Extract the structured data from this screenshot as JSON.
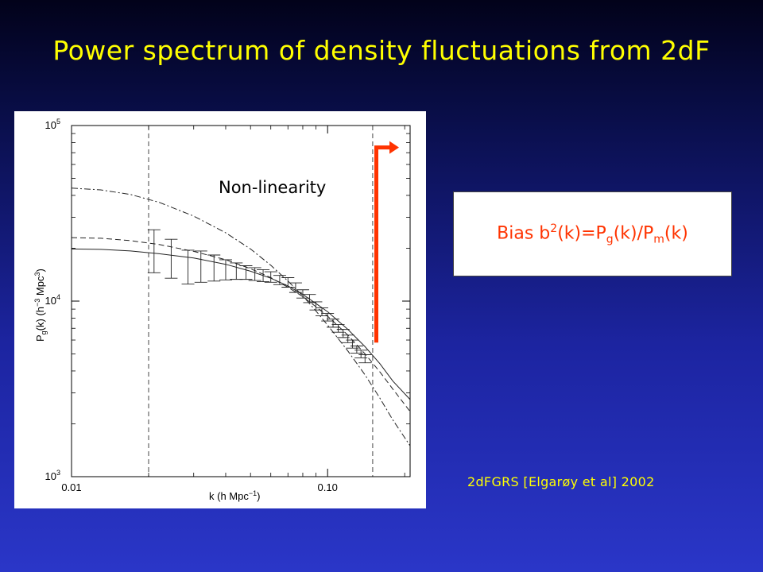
{
  "slide": {
    "title": "Power spectrum of density fluctuations from 2dF",
    "annotation": "Non-linearity",
    "bias_box": {
      "prefix": "Bias b",
      "sup": "2",
      "mid1": "(k)=P",
      "sub1": "g",
      "mid2": "(k)/P",
      "sub2": "m",
      "suffix": "(k)"
    },
    "citation": "2dFGRS [Elgarøy et al] 2002"
  },
  "colors": {
    "title": "#ffff00",
    "arrow": "#ff3300",
    "bias_text": "#ff3300",
    "citation": "#ffff00"
  },
  "chart_data": {
    "type": "line",
    "xscale": "log",
    "yscale": "log",
    "xlim": [
      0.01,
      0.21
    ],
    "ylim": [
      1000,
      100000
    ],
    "x_ticks": [
      {
        "value": 0.01,
        "label": "0.01"
      },
      {
        "value": 0.1,
        "label": "0.10"
      }
    ],
    "y_ticks": [
      {
        "value": 1000,
        "base": "10",
        "exp": "3"
      },
      {
        "value": 10000,
        "base": "10",
        "exp": "4"
      },
      {
        "value": 100000,
        "base": "10",
        "exp": "5"
      }
    ],
    "xlabel": {
      "main": "k (h Mpc",
      "sup": "−1",
      "end": ")"
    },
    "ylabel": {
      "p": "P",
      "sub": "g",
      "main": "(k) (h",
      "sup1": "−3",
      "mid": " Mpc",
      "sup2": "3",
      "end": ")"
    },
    "vlines": [
      0.02,
      0.15
    ],
    "series": [
      {
        "style": "solid",
        "points": [
          [
            0.01,
            19800
          ],
          [
            0.013,
            19700
          ],
          [
            0.017,
            19300
          ],
          [
            0.022,
            18600
          ],
          [
            0.03,
            17600
          ],
          [
            0.04,
            16200
          ],
          [
            0.05,
            14800
          ],
          [
            0.06,
            13500
          ],
          [
            0.07,
            12200
          ],
          [
            0.08,
            10900
          ],
          [
            0.09,
            9700
          ],
          [
            0.1,
            8700
          ],
          [
            0.12,
            6900
          ],
          [
            0.14,
            5500
          ],
          [
            0.16,
            4400
          ],
          [
            0.18,
            3500
          ],
          [
            0.21,
            2750
          ]
        ]
      },
      {
        "style": "dashed",
        "points": [
          [
            0.01,
            23000
          ],
          [
            0.013,
            22800
          ],
          [
            0.017,
            22100
          ],
          [
            0.022,
            21000
          ],
          [
            0.03,
            19200
          ],
          [
            0.04,
            17200
          ],
          [
            0.05,
            15300
          ],
          [
            0.06,
            13600
          ],
          [
            0.07,
            12000
          ],
          [
            0.08,
            10600
          ],
          [
            0.09,
            9300
          ],
          [
            0.1,
            8200
          ],
          [
            0.12,
            6400
          ],
          [
            0.14,
            5000
          ],
          [
            0.16,
            3950
          ],
          [
            0.18,
            3150
          ],
          [
            0.21,
            2350
          ]
        ]
      },
      {
        "style": "dashdot",
        "points": [
          [
            0.01,
            44000
          ],
          [
            0.013,
            43000
          ],
          [
            0.017,
            40500
          ],
          [
            0.022,
            36500
          ],
          [
            0.03,
            30500
          ],
          [
            0.04,
            24500
          ],
          [
            0.05,
            19800
          ],
          [
            0.06,
            16000
          ],
          [
            0.07,
            13000
          ],
          [
            0.08,
            10700
          ],
          [
            0.09,
            8800
          ],
          [
            0.1,
            7300
          ],
          [
            0.12,
            5200
          ],
          [
            0.14,
            3800
          ],
          [
            0.16,
            2800
          ],
          [
            0.18,
            2100
          ],
          [
            0.21,
            1500
          ]
        ]
      }
    ],
    "errorbars": [
      {
        "k": 0.021,
        "y": 18500,
        "lo": 14500,
        "hi": 25500
      },
      {
        "k": 0.0245,
        "y": 17500,
        "lo": 13500,
        "hi": 22500
      },
      {
        "k": 0.0285,
        "y": 17000,
        "lo": 12500,
        "hi": 19500
      },
      {
        "k": 0.032,
        "y": 16200,
        "lo": 12800,
        "hi": 19300
      },
      {
        "k": 0.036,
        "y": 15800,
        "lo": 13000,
        "hi": 18300
      },
      {
        "k": 0.04,
        "y": 15200,
        "lo": 13200,
        "hi": 17200
      },
      {
        "k": 0.044,
        "y": 14900,
        "lo": 13300,
        "hi": 16500
      },
      {
        "k": 0.048,
        "y": 14600,
        "lo": 13300,
        "hi": 15900
      },
      {
        "k": 0.052,
        "y": 14300,
        "lo": 13100,
        "hi": 15500
      },
      {
        "k": 0.056,
        "y": 14000,
        "lo": 12900,
        "hi": 15100
      },
      {
        "k": 0.06,
        "y": 13700,
        "lo": 12800,
        "hi": 14700
      },
      {
        "k": 0.065,
        "y": 13200,
        "lo": 12400,
        "hi": 14000
      },
      {
        "k": 0.07,
        "y": 12800,
        "lo": 12000,
        "hi": 13600
      },
      {
        "k": 0.075,
        "y": 11900,
        "lo": 11200,
        "hi": 12700
      },
      {
        "k": 0.08,
        "y": 11000,
        "lo": 10400,
        "hi": 11600
      },
      {
        "k": 0.085,
        "y": 10300,
        "lo": 9800,
        "hi": 10900
      },
      {
        "k": 0.09,
        "y": 9400,
        "lo": 8900,
        "hi": 9900
      },
      {
        "k": 0.095,
        "y": 8700,
        "lo": 8250,
        "hi": 9150
      },
      {
        "k": 0.1,
        "y": 8100,
        "lo": 7700,
        "hi": 8500
      },
      {
        "k": 0.105,
        "y": 7500,
        "lo": 7100,
        "hi": 7900
      },
      {
        "k": 0.11,
        "y": 7000,
        "lo": 6650,
        "hi": 7350
      },
      {
        "k": 0.115,
        "y": 6550,
        "lo": 6200,
        "hi": 6900
      },
      {
        "k": 0.12,
        "y": 6100,
        "lo": 5800,
        "hi": 6400
      },
      {
        "k": 0.125,
        "y": 5700,
        "lo": 5400,
        "hi": 6000
      },
      {
        "k": 0.13,
        "y": 5300,
        "lo": 5050,
        "hi": 5550
      },
      {
        "k": 0.135,
        "y": 5000,
        "lo": 4750,
        "hi": 5250
      },
      {
        "k": 0.14,
        "y": 4700,
        "lo": 4450,
        "hi": 4950
      }
    ],
    "arrow": {
      "k": 0.155,
      "y_from": 5800,
      "y_to": 75000,
      "k_head": 0.19
    }
  }
}
